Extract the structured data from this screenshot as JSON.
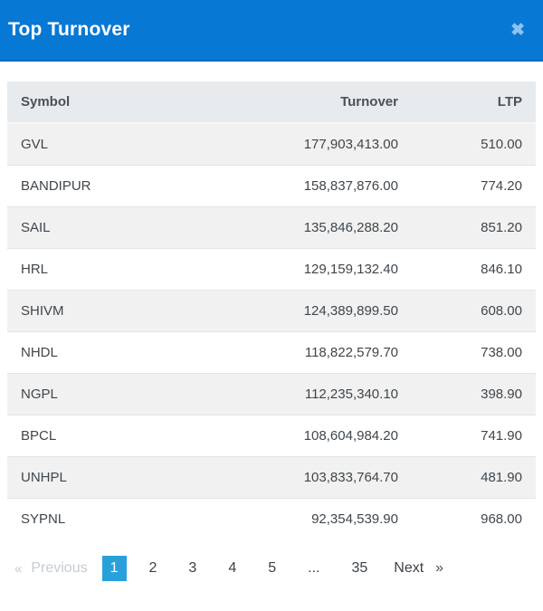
{
  "modal": {
    "title": "Top Turnover",
    "close_icon": "✖"
  },
  "table": {
    "columns": [
      "Symbol",
      "Turnover",
      "LTP"
    ],
    "rows": [
      [
        "GVL",
        "177,903,413.00",
        "510.00"
      ],
      [
        "BANDIPUR",
        "158,837,876.00",
        "774.20"
      ],
      [
        "SAIL",
        "135,846,288.20",
        "851.20"
      ],
      [
        "HRL",
        "129,159,132.40",
        "846.10"
      ],
      [
        "SHIVM",
        "124,389,899.50",
        "608.00"
      ],
      [
        "NHDL",
        "118,822,579.70",
        "738.00"
      ],
      [
        "NGPL",
        "112,235,340.10",
        "398.90"
      ],
      [
        "BPCL",
        "108,604,984.20",
        "741.90"
      ],
      [
        "UNHPL",
        "103,833,764.70",
        "481.90"
      ],
      [
        "SYPNL",
        "92,354,539.90",
        "968.00"
      ]
    ]
  },
  "pagination": {
    "prev_arrow": "«",
    "prev_label": "Previous",
    "pages": [
      "1",
      "2",
      "3",
      "4",
      "5",
      "...",
      "35"
    ],
    "active_page": "1",
    "next_label": "Next",
    "next_arrow": "»"
  },
  "colors": {
    "header_bg": "#0778d4",
    "active_page_bg": "#29a0da",
    "stripe_bg": "#f1f1f1",
    "table_head_bg": "#e8ebee"
  }
}
